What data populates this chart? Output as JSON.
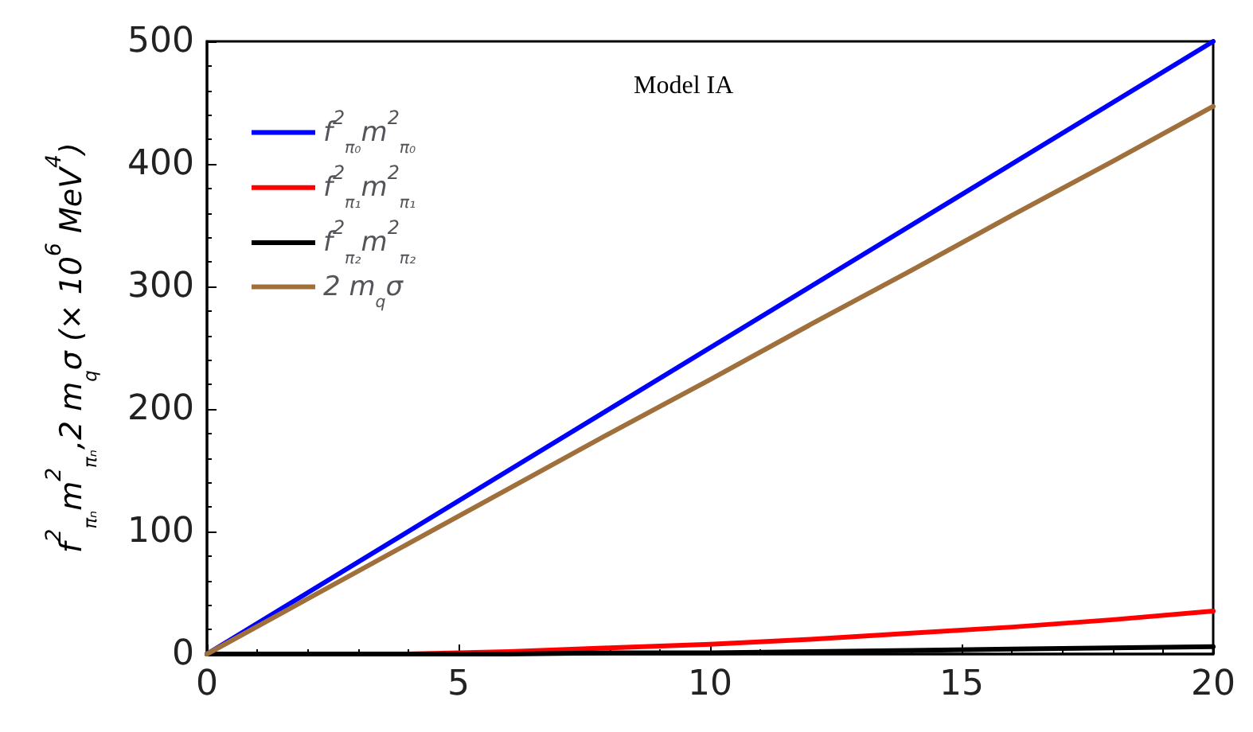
{
  "chart_data": {
    "type": "line",
    "ylabel": "f$^{2}$$_{πₙ}$m$^{2}$$_{πₙ}$,2 m$_{q}$σ (× 10$^{6}$ MeV$^{4}$)",
    "annotations": [
      "Model IA"
    ],
    "x": [
      0,
      2,
      4,
      6,
      8,
      10,
      12,
      14,
      16,
      18,
      20
    ],
    "series": [
      {
        "name": "f$^{2}$$_{π₀}$m$^{2}$$_{π₀}$",
        "color": "#0000ff",
        "values": [
          0,
          50,
          100,
          150,
          200,
          250,
          300,
          350,
          400,
          450,
          500
        ]
      },
      {
        "name": "f$^{2}$$_{π₁}$m$^{2}$$_{π₁}$",
        "color": "#ff0000",
        "values": [
          0,
          0,
          0,
          2,
          5,
          8,
          12,
          17,
          22,
          28,
          35
        ]
      },
      {
        "name": "f$^{2}$$_{π₂}$m$^{2}$$_{π₂}$",
        "color": "#000000",
        "values": [
          0,
          0,
          0,
          0,
          1,
          1,
          2,
          3,
          4,
          5,
          6
        ]
      },
      {
        "name": "2 m$_{q}$σ",
        "color": "#a0703c",
        "values": [
          0,
          45,
          90,
          135,
          180,
          224,
          269,
          313,
          358,
          402,
          447
        ]
      }
    ],
    "xlim": [
      0,
      20
    ],
    "xticks": [
      0,
      5,
      10,
      15,
      20
    ],
    "ylim": [
      0,
      500
    ],
    "yticks": [
      0,
      100,
      200,
      300,
      400,
      500
    ],
    "grid": false,
    "legend": "top left",
    "marker": "none",
    "line_style": "solid"
  }
}
